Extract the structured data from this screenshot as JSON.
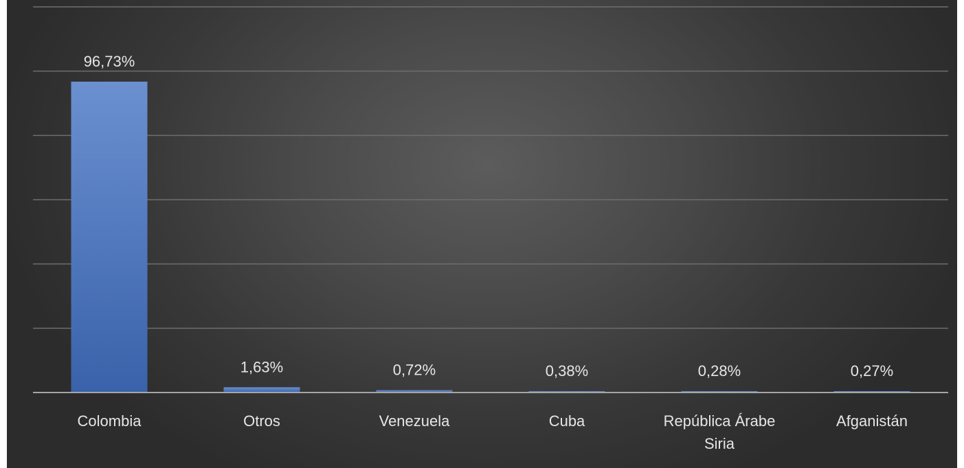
{
  "chart_data": {
    "type": "bar",
    "categories": [
      "Colombia",
      "Otros",
      "Venezuela",
      "Cuba",
      "República Árabe Siria",
      "Afganistán"
    ],
    "category_lines": [
      [
        "Colombia"
      ],
      [
        "Otros"
      ],
      [
        "Venezuela"
      ],
      [
        "Cuba"
      ],
      [
        "República Árabe",
        "Siria"
      ],
      [
        "Afganistán"
      ]
    ],
    "values": [
      96.73,
      1.63,
      0.72,
      0.38,
      0.28,
      0.27
    ],
    "data_labels": [
      "96,73%",
      "1,63%",
      "0,72%",
      "0,38%",
      "0,28%",
      "0,27%"
    ],
    "ylim": [
      0,
      120
    ],
    "grid": true,
    "title": "",
    "xlabel": "",
    "ylabel": "",
    "colors": {
      "bar_top": "#6a90d0",
      "bar_bottom": "#3a62aa",
      "gridline": "#6e6e6e",
      "axis": "#a6a6a6",
      "label_text": "#e6e6e6"
    }
  }
}
